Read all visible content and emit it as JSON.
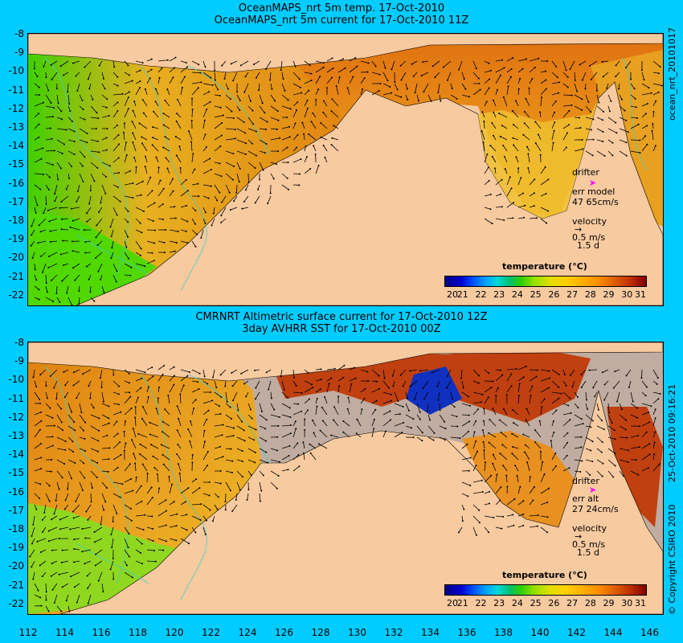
{
  "top_panel": {
    "title_line1": "OceanMAPS_nrt 5m temp. 17-Oct-2010",
    "title_line2": "OceanMAPS_nrt 5m current for 17-Oct-2010 11Z",
    "side_label": "ocean_nrt_20101017",
    "drifter_label": "drifter",
    "err_label": "err model",
    "err_value": "47 65cm/s",
    "velocity_label": "velocity",
    "velocity_scale": "0.5 m/s",
    "velocity_days": "1.5 d"
  },
  "bottom_panel": {
    "title_line1": "CMRNRT Altimetric surface current for 17-Oct-2010 12Z",
    "title_line2": "3day AVHRR SST for 17-Oct-2010 00Z",
    "side_label": "25-Oct-2010 09:16:21",
    "copyright": "© Copyright CSIRO 2010",
    "drifter_label": "drifter",
    "err_label": "err alt",
    "err_value": "27 24cm/s",
    "velocity_label": "velocity",
    "velocity_scale": "0.5 m/s",
    "velocity_days": "1.5 d"
  },
  "colorbar": {
    "title": "temperature (°C)",
    "ticks": [
      "20",
      "21",
      "22",
      "23",
      "24",
      "25",
      "26",
      "27",
      "28",
      "29",
      "30",
      "31"
    ]
  },
  "y_axis_labels": [
    "-8",
    "-9",
    "-10",
    "-11",
    "-12",
    "-13",
    "-14",
    "-15",
    "-16",
    "-17",
    "-18",
    "-19",
    "-20",
    "-21",
    "-22"
  ],
  "x_axis_labels": [
    "112",
    "114",
    "116",
    "118",
    "120",
    "122",
    "124",
    "126",
    "128",
    "130",
    "132",
    "134",
    "136",
    "138",
    "140",
    "142",
    "144",
    "146"
  ],
  "colors": {
    "background": "#00ccff",
    "land": "#f7caa0",
    "no_data": "#c0aca0",
    "drifter": "#ff00ff"
  }
}
